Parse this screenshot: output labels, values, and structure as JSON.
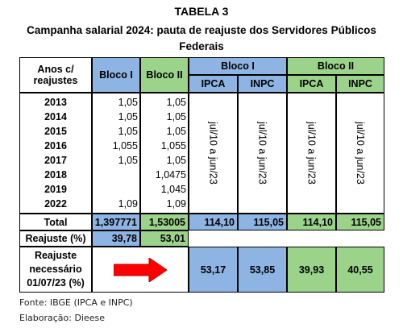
{
  "title": "TABELA 3",
  "subtitle_line1": "Campanha salarial 2024: pauta de reajuste dos Servidores Públicos",
  "subtitle_line2": "Federais",
  "headers": {
    "anos_line1": "Anos c/",
    "anos_line2": "reajustes",
    "bloco1": "Bloco I",
    "bloco2": "Bloco II",
    "group_bloco1": "Bloco I",
    "group_bloco2": "Bloco II",
    "ipca": "IPCA",
    "inpc": "INPC"
  },
  "rows": [
    {
      "year": "2013",
      "b1": "1,05",
      "b2": "1,05"
    },
    {
      "year": "2014",
      "b1": "1,05",
      "b2": "1,05"
    },
    {
      "year": "2015",
      "b1": "1,05",
      "b2": "1,05"
    },
    {
      "year": "2016",
      "b1": "1,055",
      "b2": "1,055"
    },
    {
      "year": "2017",
      "b1": "1,05",
      "b2": "1,05"
    },
    {
      "year": "2018",
      "b1": "",
      "b2": "1,0475"
    },
    {
      "year": "2019",
      "b1": "",
      "b2": "1,045"
    },
    {
      "year": "2022",
      "b1": "1,09",
      "b2": "1,09"
    }
  ],
  "period_text": "jul/10 a jun/23",
  "total": {
    "label": "Total",
    "b1": "1,397771",
    "b2": "1,53005",
    "ipca1": "114,10",
    "inpc1": "115,05",
    "ipca2": "114,10",
    "inpc2": "115,05"
  },
  "reajuste": {
    "label": "Reajuste (%)",
    "b1": "39,78",
    "b2": "53,01"
  },
  "necessario": {
    "line1": "Reajuste",
    "line2": "necessário",
    "line3": "01/07/23 (%)",
    "ipca1": "53,17",
    "inpc1": "53,85",
    "ipca2": "39,93",
    "inpc2": "40,55"
  },
  "fonte": "Fonte: IBGE (IPCA e INPC)",
  "elaboracao": "Elaboração: Dieese",
  "colors": {
    "blue": "#8db4e2",
    "green": "#9bd38b",
    "arrow": "#ff0000"
  }
}
